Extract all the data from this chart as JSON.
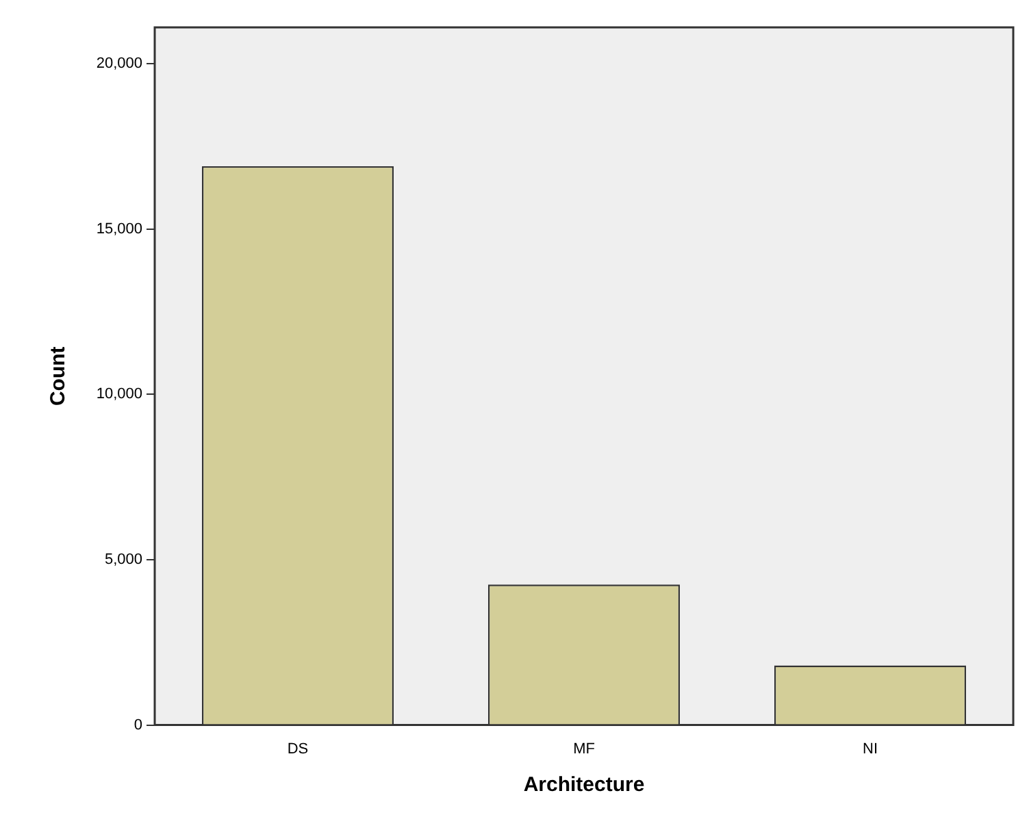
{
  "chart_data": {
    "type": "bar",
    "xlabel": "Architecture",
    "ylabel": "Count",
    "categories": [
      "DS",
      "MF",
      "NI"
    ],
    "values": [
      16900,
      4250,
      1800
    ],
    "color": "#d3ce98",
    "ylim": [
      0,
      21100
    ],
    "yticks": [
      0,
      {
        "value": 5000,
        "label": "5,000"
      },
      {
        "value": 10000,
        "label": "10,000"
      },
      {
        "value": 15000,
        "label": "15,000"
      },
      {
        "value": 20000,
        "label": "20,000"
      }
    ],
    "grid": false,
    "legend": false
  }
}
